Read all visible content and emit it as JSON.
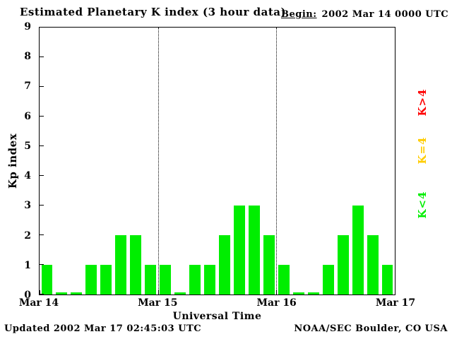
{
  "title": "Estimated Planetary K index (3 hour data)",
  "begin": {
    "label": "Begin:",
    "value": "2002 Mar 14 0000 UTC"
  },
  "footer": {
    "updated": "Updated 2002 Mar 17 02:45:03 UTC",
    "source": "NOAA/SEC Boulder, CO USA"
  },
  "colors": {
    "bar_green": "#00ee00",
    "legend_red": "#ff0000",
    "legend_yellow": "#ffcc00",
    "legend_green": "#00ee00",
    "axis": "#000000"
  },
  "legend": [
    {
      "label": "K>4",
      "color_key": "legend_red"
    },
    {
      "label": "K=4",
      "color_key": "legend_yellow"
    },
    {
      "label": "K<4",
      "color_key": "legend_green"
    }
  ],
  "chart_data": {
    "type": "bar",
    "title": "Estimated Planetary K index (3 hour data)",
    "xlabel": "Universal Time",
    "ylabel": "Kp index",
    "ylim": [
      0,
      9
    ],
    "y_ticks": [
      0,
      1,
      2,
      3,
      4,
      5,
      6,
      7,
      8,
      9
    ],
    "x_ticks": [
      "Mar 14",
      "Mar 15",
      "Mar 16",
      "Mar 17"
    ],
    "bar_interval_hours": 3,
    "start": "2002 Mar 14 0000 UTC",
    "grid": "dotted vertical lines at day boundaries",
    "color_rule": "green K<4, yellow K=4, red K>4",
    "values": [
      1,
      0,
      0,
      1,
      1,
      2,
      2,
      1,
      1,
      0,
      1,
      1,
      2,
      3,
      3,
      2,
      1,
      0,
      0,
      1,
      2,
      3,
      2,
      1
    ]
  }
}
